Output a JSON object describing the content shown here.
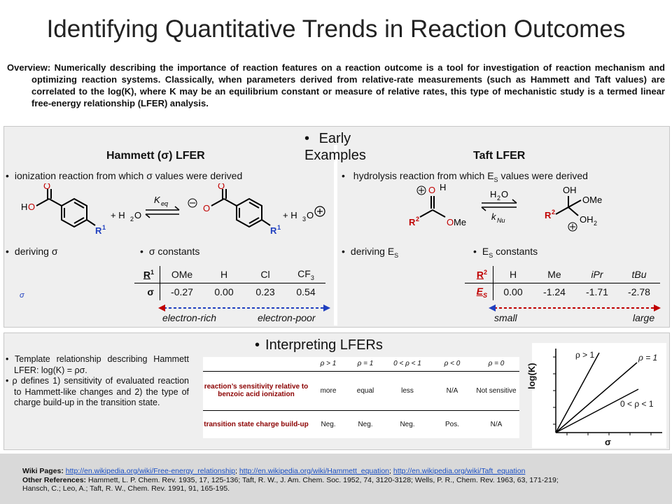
{
  "title": "Identifying Quantitative Trends in Reaction Outcomes",
  "overview": "Overview: Numerically describing the importance of reaction features on a reaction outcome is a tool for investigation of reaction mechanism and optimizing reaction systems. Classically, when parameters derived from relative-rate measurements (such as Hammett and Taft values) are correlated to the log(K), where K may be an equilibrium constant or measure of relative rates, this type of mechanistic study is a termed linear free-energy relationship (LFER) analysis.",
  "early": {
    "heading": "Early Examples",
    "hammett": {
      "title": "Hammett (σ) LFER",
      "ionization": "ionization reaction from which σ values were derived",
      "keq": "K",
      "keq_sub": "eq",
      "h2o": "+ H",
      "h3o": "+ H",
      "deriving": "deriving σ",
      "constants": "σ constants",
      "sigma_small": "σ",
      "row1_label": "R",
      "row2_label": "σ",
      "substituents": [
        "OMe",
        "H",
        "Cl",
        "CF"
      ],
      "values": [
        "-0.27",
        "0.00",
        "0.23",
        "0.54"
      ],
      "left_label": "electron-rich",
      "right_label": "electron-poor"
    },
    "taft": {
      "title": "Taft LFER",
      "hydrolysis": "hydrolysis reaction from which E",
      "hydrolysis_tail": " values were derived",
      "knu": "k",
      "knu_sub": "Nu",
      "deriving": "deriving E",
      "constants": "E",
      "constants_tail": " constants",
      "row1_label": "R",
      "row2_label": "E",
      "substituents": [
        "H",
        "Me",
        "iPr",
        "tBu"
      ],
      "values": [
        "0.00",
        "-1.24",
        "-1.71",
        "-2.78"
      ],
      "left_label": "small",
      "right_label": "large"
    }
  },
  "interpreting": {
    "heading": "Interpreting LFERs",
    "bullet1": "Template relationship describing Hammett LFER: log(K) = ρσ.",
    "bullet2": "ρ defines 1) sensitivity of evaluated reaction to Hammett-like changes and 2) the type of charge build-up in the transition state.",
    "columns": [
      "ρ > 1",
      "ρ = 1",
      "0 < ρ < 1",
      "ρ < 0",
      "ρ = 0"
    ],
    "row1_head": "reaction’s sensitivity relative to benzoic acid ionization",
    "row1": [
      "more",
      "equal",
      "less",
      "N/A",
      "Not sensitive"
    ],
    "row2_head": "transition state charge build-up",
    "row2": [
      "Neg.",
      "Neg.",
      "Neg.",
      "Pos.",
      "N/A"
    ],
    "graph": {
      "ylabel": "log(K)",
      "xlabel": "σ",
      "line1": "ρ > 1",
      "line2": "ρ = 1",
      "line3": "0 < ρ < 1"
    }
  },
  "footer": {
    "wiki_label": "Wiki Pages:",
    "links": [
      "http://en.wikipedia.org/wiki/Free-energy_relationship",
      "http://en.wikipedia.org/wiki/Hammett_equation",
      "http://en.wikipedia.org/wiki/Taft_equation"
    ],
    "refs_label": "Other References:",
    "refs_line1": "Hammett, L. P. Chem. Rev. 1935, 17, 125-136; Taft, R. W., J. Am. Chem. Soc. 1952, 74, 3120-3128; Wells, P. R., Chem. Rev. 1963, 63, 171-219;",
    "refs_line2": "Hansch, C.; Leo, A.; Taft, R. W., Chem. Rev. 1991, 91, 165-195."
  },
  "colors": {
    "red": "#c00000",
    "blue": "#1f3fbf",
    "panel": "#efefef",
    "accent": "#8b0000"
  }
}
